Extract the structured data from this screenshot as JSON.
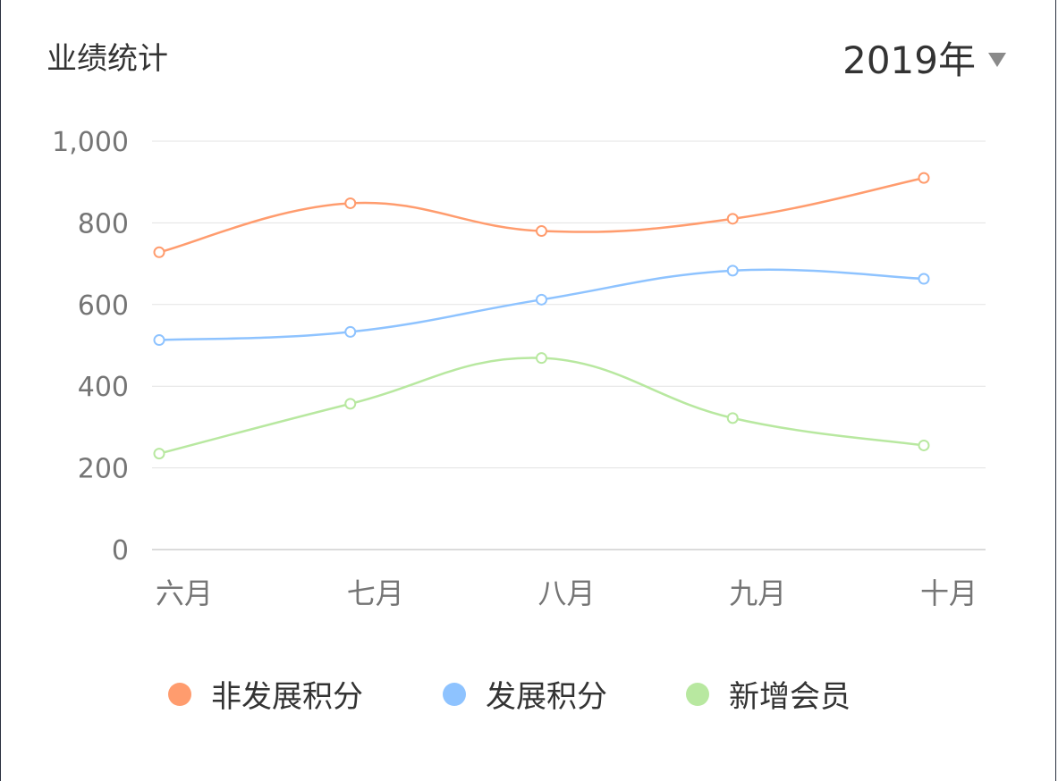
{
  "header": {
    "title": "业绩统计",
    "year": "2019年",
    "caret_icon": "caret-down-icon"
  },
  "colors": {
    "非发展积分": "#ff9c6e",
    "发展积分": "#8ec3ff",
    "新增会员": "#b8e8a0",
    "grid": "#e3e3e3",
    "axis_text": "#757575"
  },
  "chart_data": {
    "type": "line",
    "smooth": true,
    "title": "业绩统计",
    "categories": [
      "六月",
      "七月",
      "八月",
      "九月",
      "十月"
    ],
    "series": [
      {
        "name": "非发展积分",
        "values": [
          728,
          848,
          780,
          810,
          910
        ]
      },
      {
        "name": "发展积分",
        "values": [
          513,
          533,
          612,
          683,
          663
        ]
      },
      {
        "name": "新增会员",
        "values": [
          235,
          357,
          469,
          322,
          255
        ]
      }
    ],
    "yticks": [
      "1,000",
      "800",
      "600",
      "400",
      "200",
      "0"
    ],
    "ylim": [
      0,
      1000
    ],
    "grid": true,
    "legend": "bottom"
  }
}
